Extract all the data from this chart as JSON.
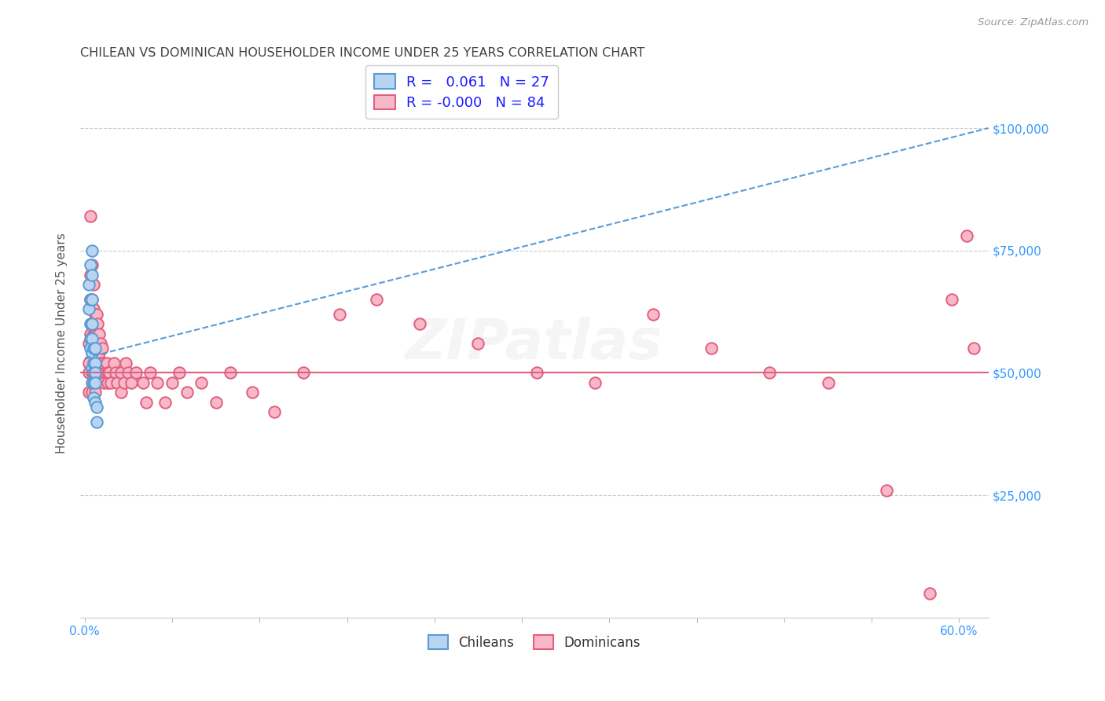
{
  "title": "CHILEAN VS DOMINICAN HOUSEHOLDER INCOME UNDER 25 YEARS CORRELATION CHART",
  "source": "Source: ZipAtlas.com",
  "ylabel": "Householder Income Under 25 years",
  "ylim": [
    0,
    112000
  ],
  "xlim": [
    -0.003,
    0.62
  ],
  "ytick_vals": [
    0,
    25000,
    50000,
    75000,
    100000
  ],
  "ytick_labels_right": [
    "",
    "$25,000",
    "$50,000",
    "$75,000",
    "$100,000"
  ],
  "xtick_vals": [
    0.0,
    0.06,
    0.12,
    0.18,
    0.24,
    0.3,
    0.36,
    0.42,
    0.48,
    0.54,
    0.6
  ],
  "xtick_labels_show": [
    "0.0%",
    "",
    "",
    "",
    "",
    "",
    "",
    "",
    "",
    "",
    "60.0%"
  ],
  "r_chilean": 0.061,
  "n_chilean": 27,
  "r_dominican": -0.0,
  "n_dominican": 84,
  "chilean_face": "#b8d4f0",
  "chilean_edge": "#5b9bd5",
  "dominican_face": "#f8b8c8",
  "dominican_edge": "#e06080",
  "trend_chilean": "#5b9bd5",
  "trend_dominican": "#e06080",
  "grid_color": "#cccccc",
  "bg_color": "#ffffff",
  "title_color": "#404040",
  "ytick_color": "#3399ff",
  "xtick_color": "#3399ff",
  "source_color": "#999999",
  "watermark": "ZIPatlas",
  "legend_text_color": "#1a1aff",
  "marker_size": 110,
  "marker_lw": 1.4,
  "chileans_x": [
    0.003,
    0.003,
    0.004,
    0.004,
    0.004,
    0.004,
    0.004,
    0.005,
    0.005,
    0.005,
    0.005,
    0.005,
    0.005,
    0.005,
    0.005,
    0.006,
    0.006,
    0.006,
    0.006,
    0.006,
    0.007,
    0.007,
    0.007,
    0.007,
    0.007,
    0.008,
    0.008
  ],
  "chileans_y": [
    68000,
    63000,
    72000,
    65000,
    60000,
    57000,
    55000,
    75000,
    70000,
    65000,
    60000,
    57000,
    54000,
    51000,
    48000,
    55000,
    52000,
    50000,
    48000,
    45000,
    55000,
    52000,
    50000,
    48000,
    44000,
    43000,
    40000
  ],
  "dominicans_x": [
    0.003,
    0.003,
    0.003,
    0.003,
    0.004,
    0.004,
    0.004,
    0.004,
    0.005,
    0.005,
    0.005,
    0.005,
    0.005,
    0.005,
    0.005,
    0.006,
    0.006,
    0.006,
    0.006,
    0.007,
    0.007,
    0.007,
    0.007,
    0.007,
    0.008,
    0.008,
    0.008,
    0.008,
    0.009,
    0.009,
    0.009,
    0.01,
    0.01,
    0.01,
    0.011,
    0.011,
    0.012,
    0.013,
    0.013,
    0.014,
    0.015,
    0.016,
    0.016,
    0.017,
    0.018,
    0.02,
    0.021,
    0.022,
    0.025,
    0.025,
    0.027,
    0.028,
    0.03,
    0.032,
    0.035,
    0.04,
    0.042,
    0.045,
    0.05,
    0.055,
    0.06,
    0.065,
    0.07,
    0.08,
    0.09,
    0.1,
    0.115,
    0.13,
    0.15,
    0.175,
    0.2,
    0.23,
    0.27,
    0.31,
    0.35,
    0.39,
    0.43,
    0.47,
    0.51,
    0.55,
    0.58,
    0.595,
    0.605,
    0.61
  ],
  "dominicans_y": [
    56000,
    52000,
    50000,
    46000,
    82000,
    70000,
    65000,
    58000,
    72000,
    65000,
    60000,
    57000,
    54000,
    50000,
    46000,
    68000,
    63000,
    58000,
    52000,
    62000,
    58000,
    54000,
    50000,
    46000,
    62000,
    58000,
    54000,
    50000,
    60000,
    56000,
    52000,
    58000,
    54000,
    50000,
    56000,
    52000,
    55000,
    52000,
    48000,
    50000,
    52000,
    50000,
    48000,
    50000,
    48000,
    52000,
    50000,
    48000,
    50000,
    46000,
    48000,
    52000,
    50000,
    48000,
    50000,
    48000,
    44000,
    50000,
    48000,
    44000,
    48000,
    50000,
    46000,
    48000,
    44000,
    50000,
    46000,
    42000,
    50000,
    62000,
    65000,
    60000,
    56000,
    50000,
    48000,
    62000,
    55000,
    50000,
    48000,
    26000,
    5000,
    65000,
    78000,
    55000
  ],
  "figsize": [
    14.06,
    8.92
  ],
  "dpi": 100
}
